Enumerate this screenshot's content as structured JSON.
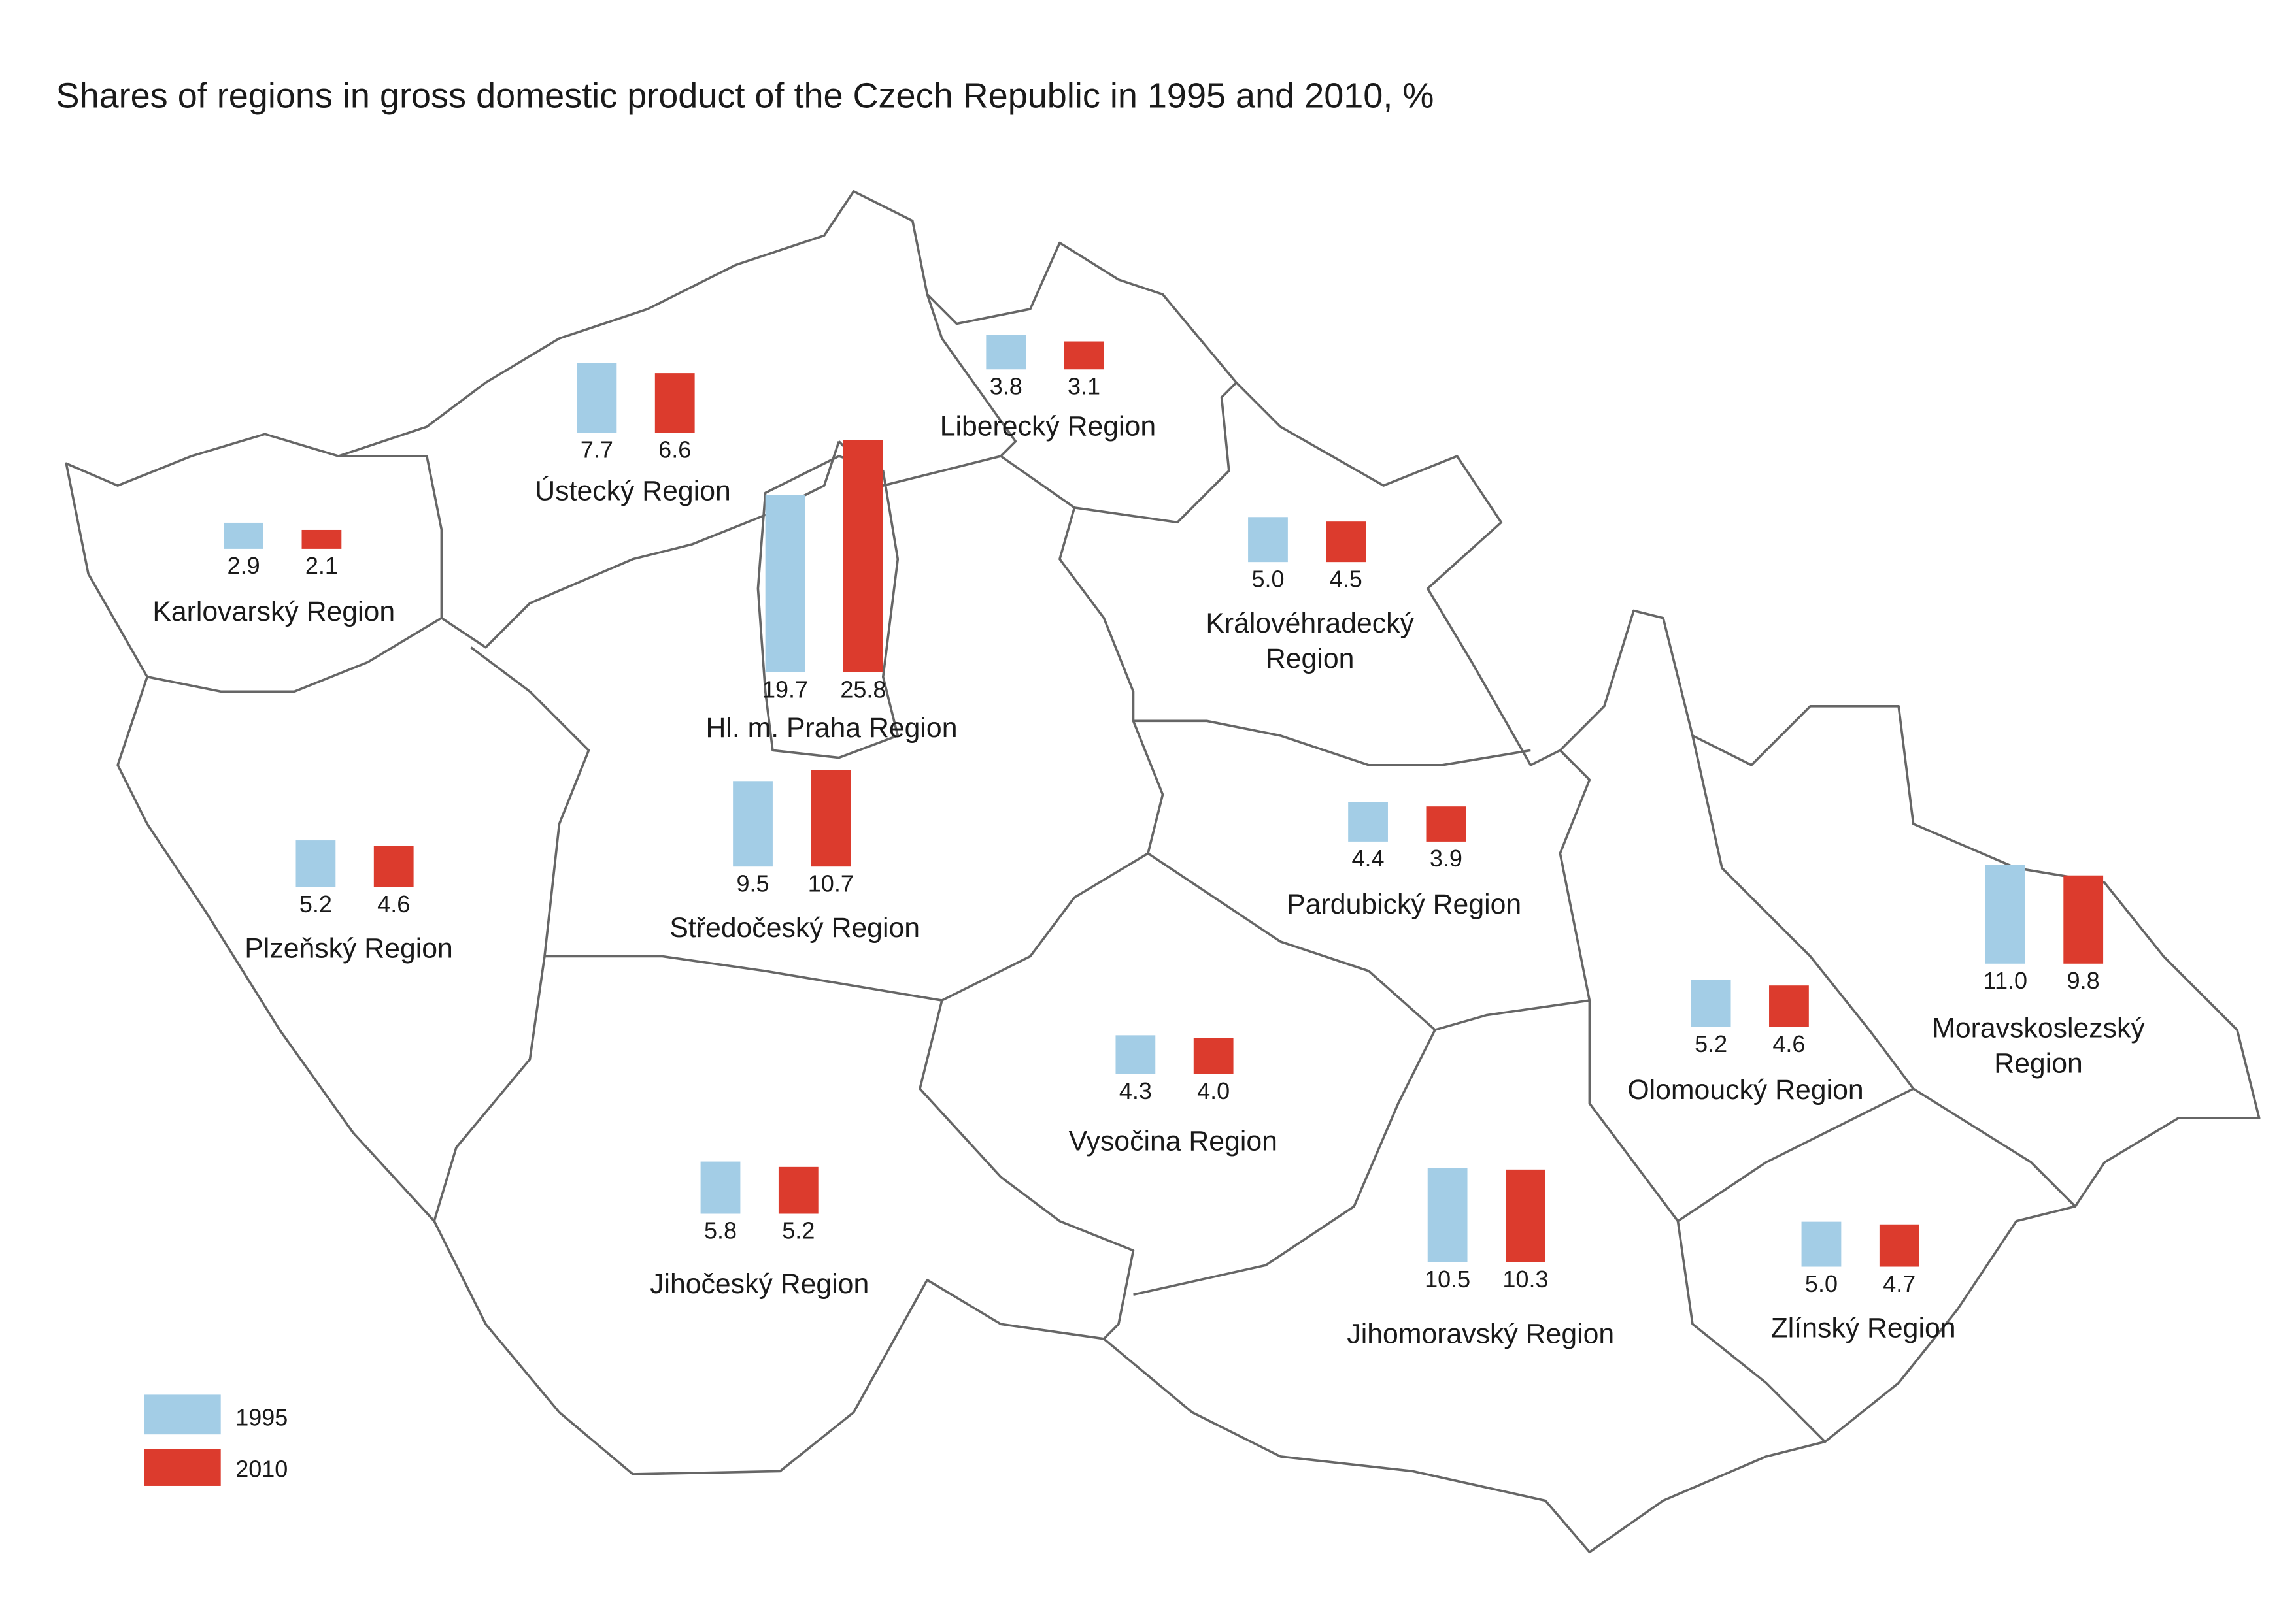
{
  "title": "Shares of regions in gross domestic product of the Czech Republic in 1995 and 2010, %",
  "legend": [
    {
      "label": "1995",
      "color": "#a3cde6"
    },
    {
      "label": "2010",
      "color": "#dc3b2d"
    }
  ],
  "chart_data": {
    "type": "bar",
    "title": "Shares of regions in gross domestic product of the Czech Republic in 1995 and 2010, %",
    "series_names": [
      "1995",
      "2010"
    ],
    "regions": [
      {
        "name": [
          "Karlovarský Region"
        ],
        "v1995": 2.9,
        "v2010": 2.1,
        "l1995": "2.9",
        "l2010": "2.1"
      },
      {
        "name": [
          "Ústecký Region"
        ],
        "v1995": 7.7,
        "v2010": 6.6,
        "l1995": "7.7",
        "l2010": "6.6"
      },
      {
        "name": [
          "Liberecký Region"
        ],
        "v1995": 3.8,
        "v2010": 3.1,
        "l1995": "3.8",
        "l2010": "3.1"
      },
      {
        "name": [
          "Hl. m. Praha Region"
        ],
        "v1995": 19.7,
        "v2010": 25.8,
        "l1995": "19.7",
        "l2010": "25.8"
      },
      {
        "name": [
          "Královéhradecký",
          "Region"
        ],
        "v1995": 5.0,
        "v2010": 4.5,
        "l1995": "5.0",
        "l2010": "4.5"
      },
      {
        "name": [
          "Plzeňský Region"
        ],
        "v1995": 5.2,
        "v2010": 4.6,
        "l1995": "5.2",
        "l2010": "4.6"
      },
      {
        "name": [
          "Středočeský Region"
        ],
        "v1995": 9.5,
        "v2010": 10.7,
        "l1995": "9.5",
        "l2010": "10.7"
      },
      {
        "name": [
          "Pardubický Region"
        ],
        "v1995": 4.4,
        "v2010": 3.9,
        "l1995": "4.4",
        "l2010": "3.9"
      },
      {
        "name": [
          "Vysočina Region"
        ],
        "v1995": 4.3,
        "v2010": 4.0,
        "l1995": "4.3",
        "l2010": "4.0"
      },
      {
        "name": [
          "Jihočeský Region"
        ],
        "v1995": 5.8,
        "v2010": 5.2,
        "l1995": "5.8",
        "l2010": "5.2"
      },
      {
        "name": [
          "Jihomoravský Region"
        ],
        "v1995": 10.5,
        "v2010": 10.3,
        "l1995": "10.5",
        "l2010": "10.3"
      },
      {
        "name": [
          "Olomoucký Region"
        ],
        "v1995": 5.2,
        "v2010": 4.6,
        "l1995": "5.2",
        "l2010": "4.6"
      },
      {
        "name": [
          "Moravskoslezský",
          "Region"
        ],
        "v1995": 11.0,
        "v2010": 9.8,
        "l1995": "11.0",
        "l2010": "9.8"
      },
      {
        "name": [
          "Zlínský Region"
        ],
        "v1995": 5.0,
        "v2010": 4.7,
        "l1995": "5.0",
        "l2010": "4.7"
      }
    ]
  }
}
